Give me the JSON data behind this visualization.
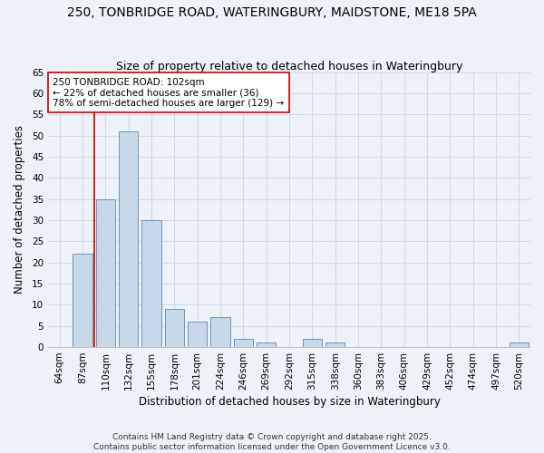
{
  "title": "250, TONBRIDGE ROAD, WATERINGBURY, MAIDSTONE, ME18 5PA",
  "subtitle": "Size of property relative to detached houses in Wateringbury",
  "xlabel": "Distribution of detached houses by size in Wateringbury",
  "ylabel": "Number of detached properties",
  "categories": [
    "64sqm",
    "87sqm",
    "110sqm",
    "132sqm",
    "155sqm",
    "178sqm",
    "201sqm",
    "224sqm",
    "246sqm",
    "269sqm",
    "292sqm",
    "315sqm",
    "338sqm",
    "360sqm",
    "383sqm",
    "406sqm",
    "429sqm",
    "452sqm",
    "474sqm",
    "497sqm",
    "520sqm"
  ],
  "values": [
    0,
    22,
    35,
    51,
    30,
    9,
    6,
    7,
    2,
    1,
    0,
    2,
    1,
    0,
    0,
    0,
    0,
    0,
    0,
    0,
    1
  ],
  "bar_color": "#c8d8e8",
  "bar_edge_color": "#5a8ab0",
  "grid_color": "#d0d8e8",
  "background_color": "#eef2f8",
  "vline_x": 1.5,
  "vline_color": "#cc0000",
  "annotation_text": "250 TONBRIDGE ROAD: 102sqm\n← 22% of detached houses are smaller (36)\n78% of semi-detached houses are larger (129) →",
  "annotation_box_color": "#ffffff",
  "annotation_box_edge": "#cc0000",
  "ylim": [
    0,
    65
  ],
  "yticks": [
    0,
    5,
    10,
    15,
    20,
    25,
    30,
    35,
    40,
    45,
    50,
    55,
    60,
    65
  ],
  "footer": "Contains HM Land Registry data © Crown copyright and database right 2025.\nContains public sector information licensed under the Open Government Licence v3.0.",
  "title_fontsize": 10,
  "subtitle_fontsize": 9,
  "xlabel_fontsize": 8.5,
  "ylabel_fontsize": 8.5,
  "tick_fontsize": 7.5,
  "annotation_fontsize": 7.5,
  "footer_fontsize": 6.5
}
